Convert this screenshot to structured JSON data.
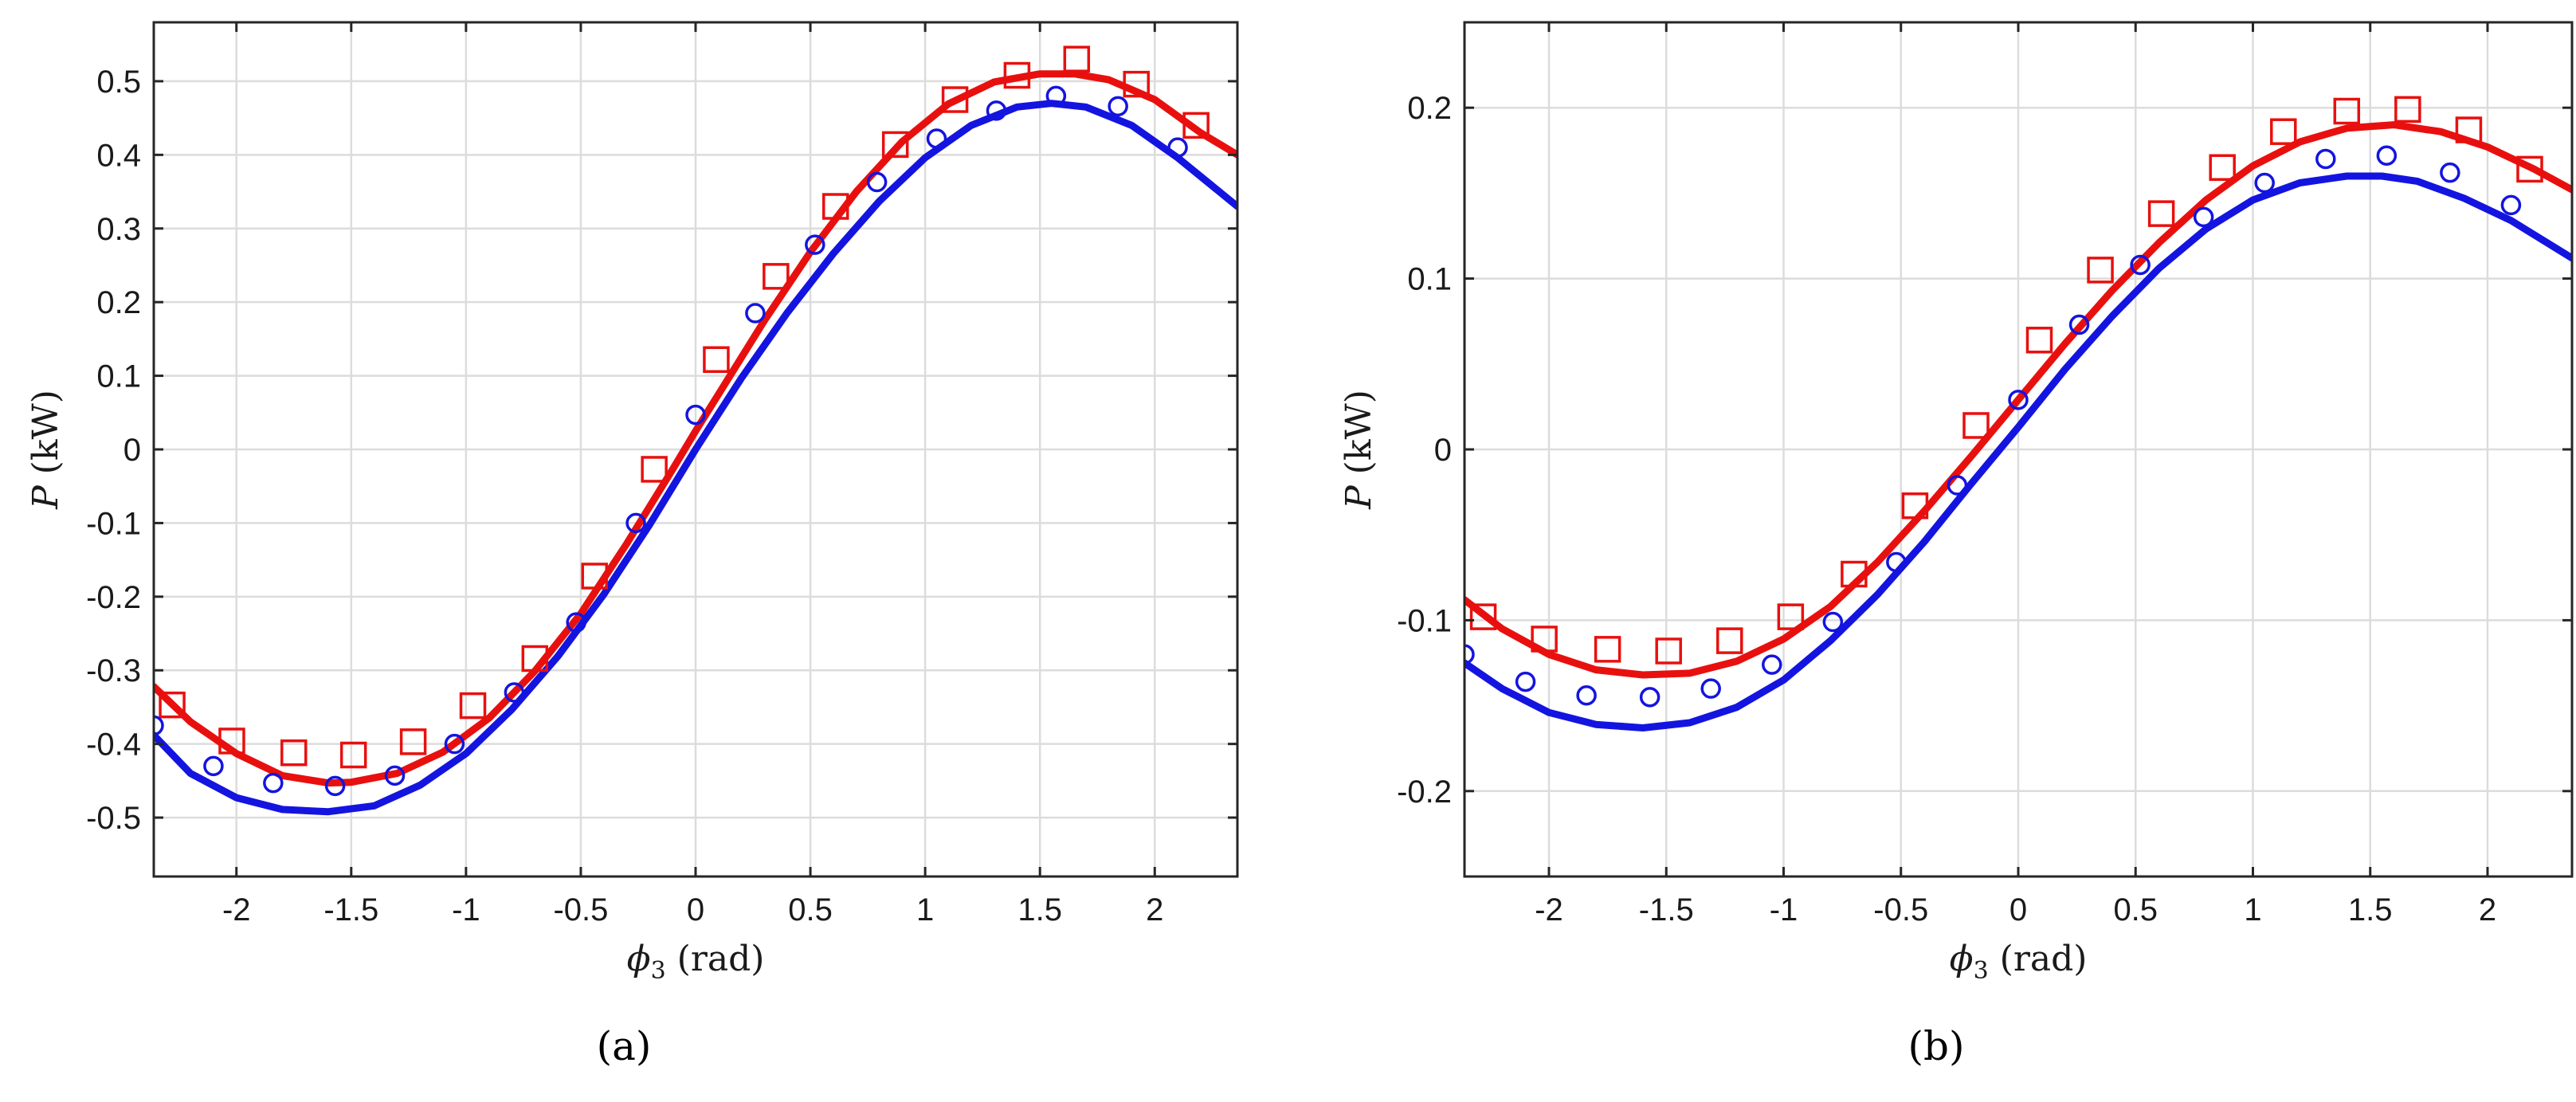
{
  "chart_data": [
    {
      "type": "line",
      "panel_label": "(a)",
      "xlabel_symbol": "ϕ",
      "xlabel_sub": "3",
      "xlabel_unit": "(rad)",
      "ylabel_symbol": "P",
      "ylabel_unit": "(kW)",
      "xlim": [
        -2.36,
        2.36
      ],
      "ylim": [
        -0.58,
        0.58
      ],
      "xticks": [
        -2,
        -1.5,
        -1,
        -0.5,
        0,
        0.5,
        1,
        1.5,
        2
      ],
      "xticklabels": [
        "-2",
        "-1.5",
        "-1",
        "-0.5",
        "0",
        "0.5",
        "1",
        "1.5",
        "2"
      ],
      "yticks": [
        -0.5,
        -0.4,
        -0.3,
        -0.2,
        -0.1,
        0,
        0.1,
        0.2,
        0.3,
        0.4,
        0.5
      ],
      "yticklabels": [
        "-0.5",
        "-0.4",
        "-0.3",
        "-0.2",
        "-0.1",
        "0",
        "0.1",
        "0.2",
        "0.3",
        "0.4",
        "0.5"
      ],
      "grid": true,
      "series": [
        {
          "kind": "line",
          "color": "#e8100e",
          "x": [
            -2.36,
            -2.2,
            -2.0,
            -1.8,
            -1.6,
            -1.5,
            -1.3,
            -1.1,
            -0.9,
            -0.7,
            -0.5,
            -0.3,
            -0.1,
            0,
            0.1,
            0.3,
            0.5,
            0.7,
            0.9,
            1.1,
            1.3,
            1.5,
            1.65,
            1.8,
            2.0,
            2.2,
            2.36
          ],
          "y": [
            -0.322,
            -0.37,
            -0.413,
            -0.443,
            -0.453,
            -0.452,
            -0.44,
            -0.411,
            -0.365,
            -0.301,
            -0.223,
            -0.128,
            -0.027,
            0.025,
            0.075,
            0.175,
            0.268,
            0.35,
            0.418,
            0.469,
            0.499,
            0.51,
            0.51,
            0.502,
            0.475,
            0.43,
            0.4
          ]
        },
        {
          "kind": "line",
          "color": "#1414e0",
          "x": [
            -2.36,
            -2.2,
            -2.0,
            -1.8,
            -1.6,
            -1.4,
            -1.2,
            -1.0,
            -0.8,
            -0.6,
            -0.4,
            -0.2,
            0,
            0.2,
            0.4,
            0.6,
            0.8,
            1.0,
            1.2,
            1.4,
            1.55,
            1.7,
            1.9,
            2.1,
            2.36
          ],
          "y": [
            -0.388,
            -0.44,
            -0.473,
            -0.489,
            -0.492,
            -0.484,
            -0.456,
            -0.413,
            -0.353,
            -0.281,
            -0.197,
            -0.102,
            0.0,
            0.097,
            0.186,
            0.266,
            0.337,
            0.396,
            0.44,
            0.465,
            0.47,
            0.465,
            0.44,
            0.396,
            0.33
          ]
        },
        {
          "kind": "markers",
          "marker": "square",
          "color": "#e8100e",
          "x": [
            -2.28,
            -2.02,
            -1.75,
            -1.49,
            -1.23,
            -0.97,
            -0.7,
            -0.44,
            -0.18,
            0.09,
            0.35,
            0.61,
            0.87,
            1.13,
            1.4,
            1.66,
            1.92,
            2.18
          ],
          "y": [
            -0.347,
            -0.396,
            -0.412,
            -0.415,
            -0.397,
            -0.348,
            -0.284,
            -0.172,
            -0.027,
            0.122,
            0.235,
            0.33,
            0.414,
            0.475,
            0.508,
            0.53,
            0.496,
            0.44
          ]
        },
        {
          "kind": "markers",
          "marker": "circle",
          "color": "#1414e0",
          "x": [
            -2.36,
            -2.1,
            -1.84,
            -1.57,
            -1.31,
            -1.05,
            -0.79,
            -0.52,
            -0.26,
            0,
            0.26,
            0.52,
            0.79,
            1.05,
            1.31,
            1.57,
            1.84,
            2.1
          ],
          "y": [
            -0.375,
            -0.43,
            -0.453,
            -0.457,
            -0.443,
            -0.4,
            -0.33,
            -0.235,
            -0.1,
            0.047,
            0.185,
            0.278,
            0.363,
            0.422,
            0.46,
            0.48,
            0.466,
            0.41
          ]
        }
      ]
    },
    {
      "type": "line",
      "panel_label": "(b)",
      "xlabel_symbol": "ϕ",
      "xlabel_sub": "3",
      "xlabel_unit": "(rad)",
      "ylabel_symbol": "P",
      "ylabel_unit": "(kW)",
      "xlim": [
        -2.36,
        2.36
      ],
      "ylim": [
        -0.25,
        0.25
      ],
      "xticks": [
        -2,
        -1.5,
        -1,
        -0.5,
        0,
        0.5,
        1,
        1.5,
        2
      ],
      "xticklabels": [
        "-2",
        "-1.5",
        "-1",
        "-0.5",
        "0",
        "0.5",
        "1",
        "1.5",
        "2"
      ],
      "yticks": [
        -0.2,
        -0.1,
        0,
        0.1,
        0.2
      ],
      "yticklabels": [
        "-0.2",
        "-0.1",
        "0",
        "0.1",
        "0.2"
      ],
      "grid": true,
      "series": [
        {
          "kind": "line",
          "color": "#e8100e",
          "x": [
            -2.36,
            -2.2,
            -2.0,
            -1.8,
            -1.6,
            -1.4,
            -1.2,
            -1.0,
            -0.8,
            -0.6,
            -0.4,
            -0.2,
            0,
            0.2,
            0.4,
            0.6,
            0.8,
            1.0,
            1.2,
            1.4,
            1.6,
            1.8,
            2.0,
            2.2,
            2.36
          ],
          "y": [
            -0.088,
            -0.105,
            -0.12,
            -0.129,
            -0.132,
            -0.131,
            -0.124,
            -0.111,
            -0.092,
            -0.066,
            -0.036,
            -0.004,
            0.029,
            0.062,
            0.093,
            0.121,
            0.146,
            0.166,
            0.18,
            0.188,
            0.19,
            0.186,
            0.177,
            0.164,
            0.152
          ]
        },
        {
          "kind": "line",
          "color": "#1414e0",
          "x": [
            -2.36,
            -2.2,
            -2.0,
            -1.8,
            -1.6,
            -1.4,
            -1.2,
            -1.0,
            -0.8,
            -0.6,
            -0.4,
            -0.2,
            0,
            0.2,
            0.4,
            0.6,
            0.8,
            1.0,
            1.2,
            1.4,
            1.55,
            1.7,
            1.9,
            2.1,
            2.36
          ],
          "y": [
            -0.125,
            -0.14,
            -0.154,
            -0.161,
            -0.163,
            -0.16,
            -0.151,
            -0.135,
            -0.112,
            -0.085,
            -0.054,
            -0.02,
            0.013,
            0.047,
            0.078,
            0.106,
            0.129,
            0.146,
            0.156,
            0.16,
            0.16,
            0.157,
            0.147,
            0.134,
            0.112
          ]
        },
        {
          "kind": "markers",
          "marker": "square",
          "color": "#e8100e",
          "x": [
            -2.28,
            -2.02,
            -1.75,
            -1.49,
            -1.23,
            -0.97,
            -0.7,
            -0.44,
            -0.18,
            0.09,
            0.35,
            0.61,
            0.87,
            1.13,
            1.4,
            1.66,
            1.92,
            2.18
          ],
          "y": [
            -0.098,
            -0.111,
            -0.117,
            -0.118,
            -0.112,
            -0.098,
            -0.073,
            -0.033,
            0.014,
            0.064,
            0.105,
            0.138,
            0.165,
            0.186,
            0.198,
            0.199,
            0.187,
            0.164
          ]
        },
        {
          "kind": "markers",
          "marker": "circle",
          "color": "#1414e0",
          "x": [
            -2.36,
            -2.1,
            -1.84,
            -1.57,
            -1.31,
            -1.05,
            -0.79,
            -0.52,
            -0.26,
            0,
            0.26,
            0.52,
            0.79,
            1.05,
            1.31,
            1.57,
            1.84,
            2.1
          ],
          "y": [
            -0.12,
            -0.136,
            -0.144,
            -0.145,
            -0.14,
            -0.126,
            -0.101,
            -0.066,
            -0.021,
            0.029,
            0.073,
            0.108,
            0.136,
            0.156,
            0.17,
            0.172,
            0.162,
            0.143
          ]
        }
      ]
    }
  ]
}
